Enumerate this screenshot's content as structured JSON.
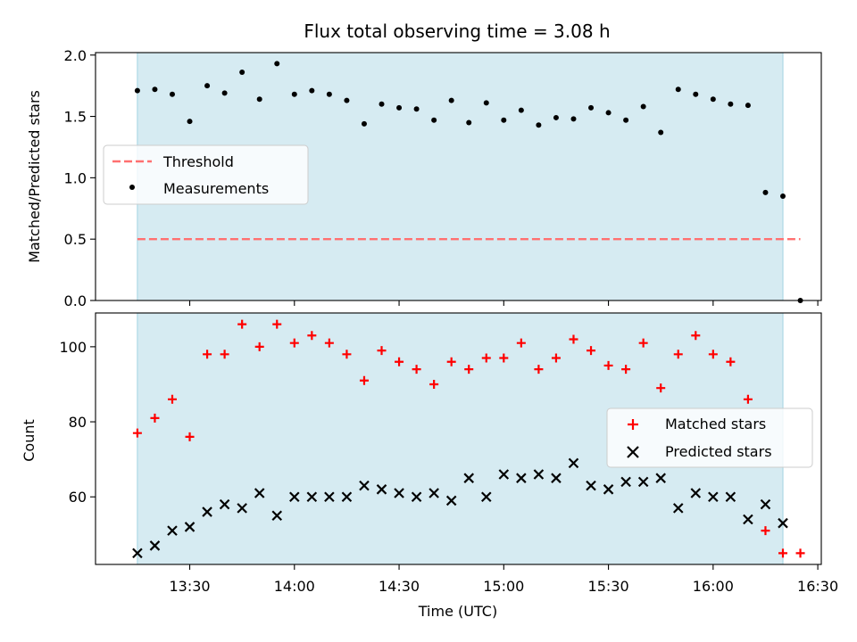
{
  "chart_data": [
    {
      "type": "scatter",
      "title": "Flux total observing time = 3.08 h",
      "xlabel": "",
      "ylabel": "Matched/Predicted stars",
      "ylim": [
        0,
        2.02
      ],
      "x_ticks": [
        "13:30",
        "14:00",
        "14:30",
        "15:00",
        "15:30",
        "16:00",
        "16:30"
      ],
      "y_ticks": [
        "0.0",
        "0.5",
        "1.0",
        "1.5",
        "2.0"
      ],
      "shaded_span": [
        "13:15",
        "16:20"
      ],
      "threshold": {
        "name": "Threshold",
        "value": 0.5,
        "color": "#ff7070",
        "x": [
          "13:15",
          "16:25"
        ]
      },
      "series": [
        {
          "name": "Measurements",
          "color": "#000000",
          "x": [
            "13:15",
            "13:20",
            "13:25",
            "13:30",
            "13:35",
            "13:40",
            "13:45",
            "13:50",
            "13:55",
            "14:00",
            "14:05",
            "14:10",
            "14:15",
            "14:20",
            "14:25",
            "14:30",
            "14:35",
            "14:40",
            "14:45",
            "14:50",
            "14:55",
            "15:00",
            "15:05",
            "15:10",
            "15:15",
            "15:20",
            "15:25",
            "15:30",
            "15:35",
            "15:40",
            "15:45",
            "15:50",
            "15:55",
            "16:00",
            "16:05",
            "16:10",
            "16:15",
            "16:20",
            "16:25"
          ],
          "values": [
            1.71,
            1.72,
            1.68,
            1.46,
            1.75,
            1.69,
            1.86,
            1.64,
            1.93,
            1.68,
            1.71,
            1.68,
            1.63,
            1.44,
            1.6,
            1.57,
            1.56,
            1.47,
            1.63,
            1.45,
            1.61,
            1.47,
            1.55,
            1.43,
            1.49,
            1.48,
            1.57,
            1.53,
            1.47,
            1.58,
            1.37,
            1.72,
            1.68,
            1.64,
            1.6,
            1.59,
            0.88,
            0.85,
            0.0
          ]
        }
      ],
      "legend": "center-left"
    },
    {
      "type": "scatter",
      "title": "",
      "xlabel": "Time (UTC)",
      "ylabel": "Count",
      "ylim": [
        42,
        109
      ],
      "x_ticks": [
        "13:30",
        "14:00",
        "14:30",
        "15:00",
        "15:30",
        "16:00",
        "16:30"
      ],
      "y_ticks": [
        "60",
        "80",
        "100"
      ],
      "shaded_span": [
        "13:15",
        "16:20"
      ],
      "series": [
        {
          "name": "Matched stars",
          "marker": "+",
          "color": "#ff0000",
          "x": [
            "13:15",
            "13:20",
            "13:25",
            "13:30",
            "13:35",
            "13:40",
            "13:45",
            "13:50",
            "13:55",
            "14:00",
            "14:05",
            "14:10",
            "14:15",
            "14:20",
            "14:25",
            "14:30",
            "14:35",
            "14:40",
            "14:45",
            "14:50",
            "14:55",
            "15:00",
            "15:05",
            "15:10",
            "15:15",
            "15:20",
            "15:25",
            "15:30",
            "15:35",
            "15:40",
            "15:45",
            "15:50",
            "15:55",
            "16:00",
            "16:05",
            "16:10",
            "16:15",
            "16:20",
            "16:25"
          ],
          "values": [
            77,
            81,
            86,
            76,
            98,
            98,
            106,
            100,
            106,
            101,
            103,
            101,
            98,
            91,
            99,
            96,
            94,
            90,
            96,
            94,
            97,
            97,
            101,
            94,
            97,
            102,
            99,
            95,
            94,
            101,
            89,
            98,
            103,
            98,
            96,
            86,
            51,
            45,
            45
          ]
        },
        {
          "name": "Predicted stars",
          "marker": "x",
          "color": "#000000",
          "x": [
            "13:15",
            "13:20",
            "13:25",
            "13:30",
            "13:35",
            "13:40",
            "13:45",
            "13:50",
            "13:55",
            "14:00",
            "14:05",
            "14:10",
            "14:15",
            "14:20",
            "14:25",
            "14:30",
            "14:35",
            "14:40",
            "14:45",
            "14:50",
            "14:55",
            "15:00",
            "15:05",
            "15:10",
            "15:15",
            "15:20",
            "15:25",
            "15:30",
            "15:35",
            "15:40",
            "15:45",
            "15:50",
            "15:55",
            "16:00",
            "16:05",
            "16:10",
            "16:15",
            "16:20"
          ],
          "values": [
            45,
            47,
            51,
            52,
            56,
            58,
            57,
            61,
            55,
            60,
            60,
            60,
            60,
            63,
            62,
            61,
            60,
            61,
            59,
            65,
            60,
            66,
            65,
            66,
            65,
            69,
            63,
            62,
            64,
            64,
            65,
            57,
            61,
            60,
            60,
            54,
            58,
            53
          ]
        }
      ],
      "legend": "center-right"
    }
  ]
}
